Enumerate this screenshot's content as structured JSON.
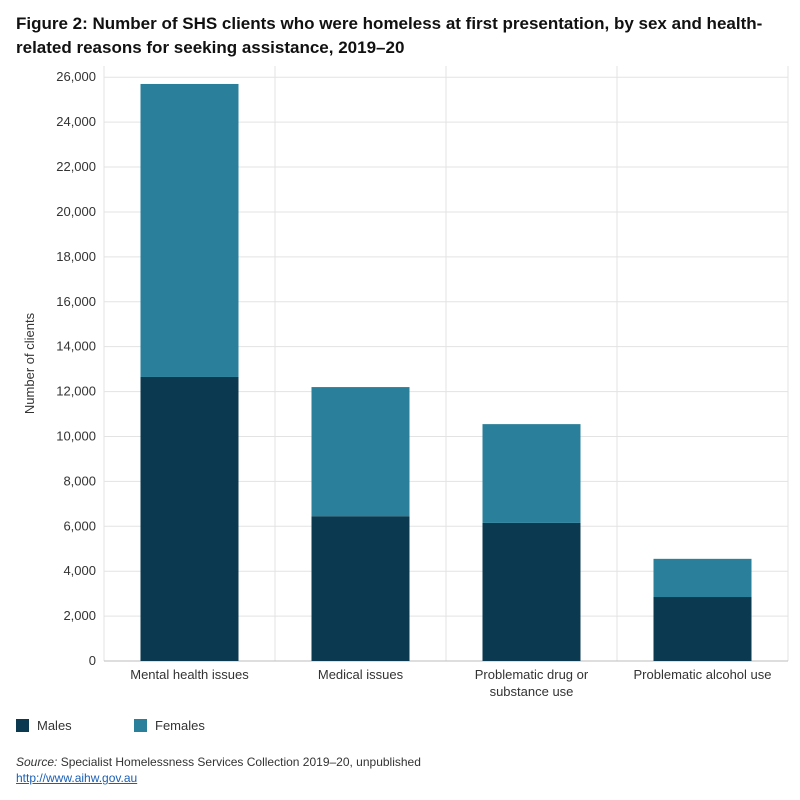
{
  "title": "Figure 2: Number of SHS clients who were homeless at first presentation, by sex and health-related reasons for seeking assistance, 2019–20",
  "chart_data": {
    "type": "bar",
    "stacked": true,
    "categories": [
      [
        "Mental health issues"
      ],
      [
        "Medical issues"
      ],
      [
        "Problematic drug or",
        "substance use"
      ],
      [
        "Problematic alcohol use"
      ]
    ],
    "series": [
      {
        "name": "Males",
        "color": "#0b3a50",
        "values": [
          12650,
          6450,
          6150,
          2850
        ]
      },
      {
        "name": "Females",
        "color": "#2a7f9a",
        "values": [
          13050,
          5750,
          4400,
          1700
        ]
      }
    ],
    "ylabel": "Number of clients",
    "ylim": [
      0,
      26500
    ],
    "yticks": [
      0,
      2000,
      4000,
      6000,
      8000,
      10000,
      12000,
      14000,
      16000,
      18000,
      20000,
      22000,
      24000,
      26000
    ],
    "grid": true,
    "legend_position": "bottom-left"
  },
  "legend": {
    "males": "Males",
    "females": "Females"
  },
  "source": {
    "label": "Source:",
    "text": " Specialist Homelessness Services Collection 2019–20, unpublished",
    "link": "http://www.aihw.gov.au"
  }
}
